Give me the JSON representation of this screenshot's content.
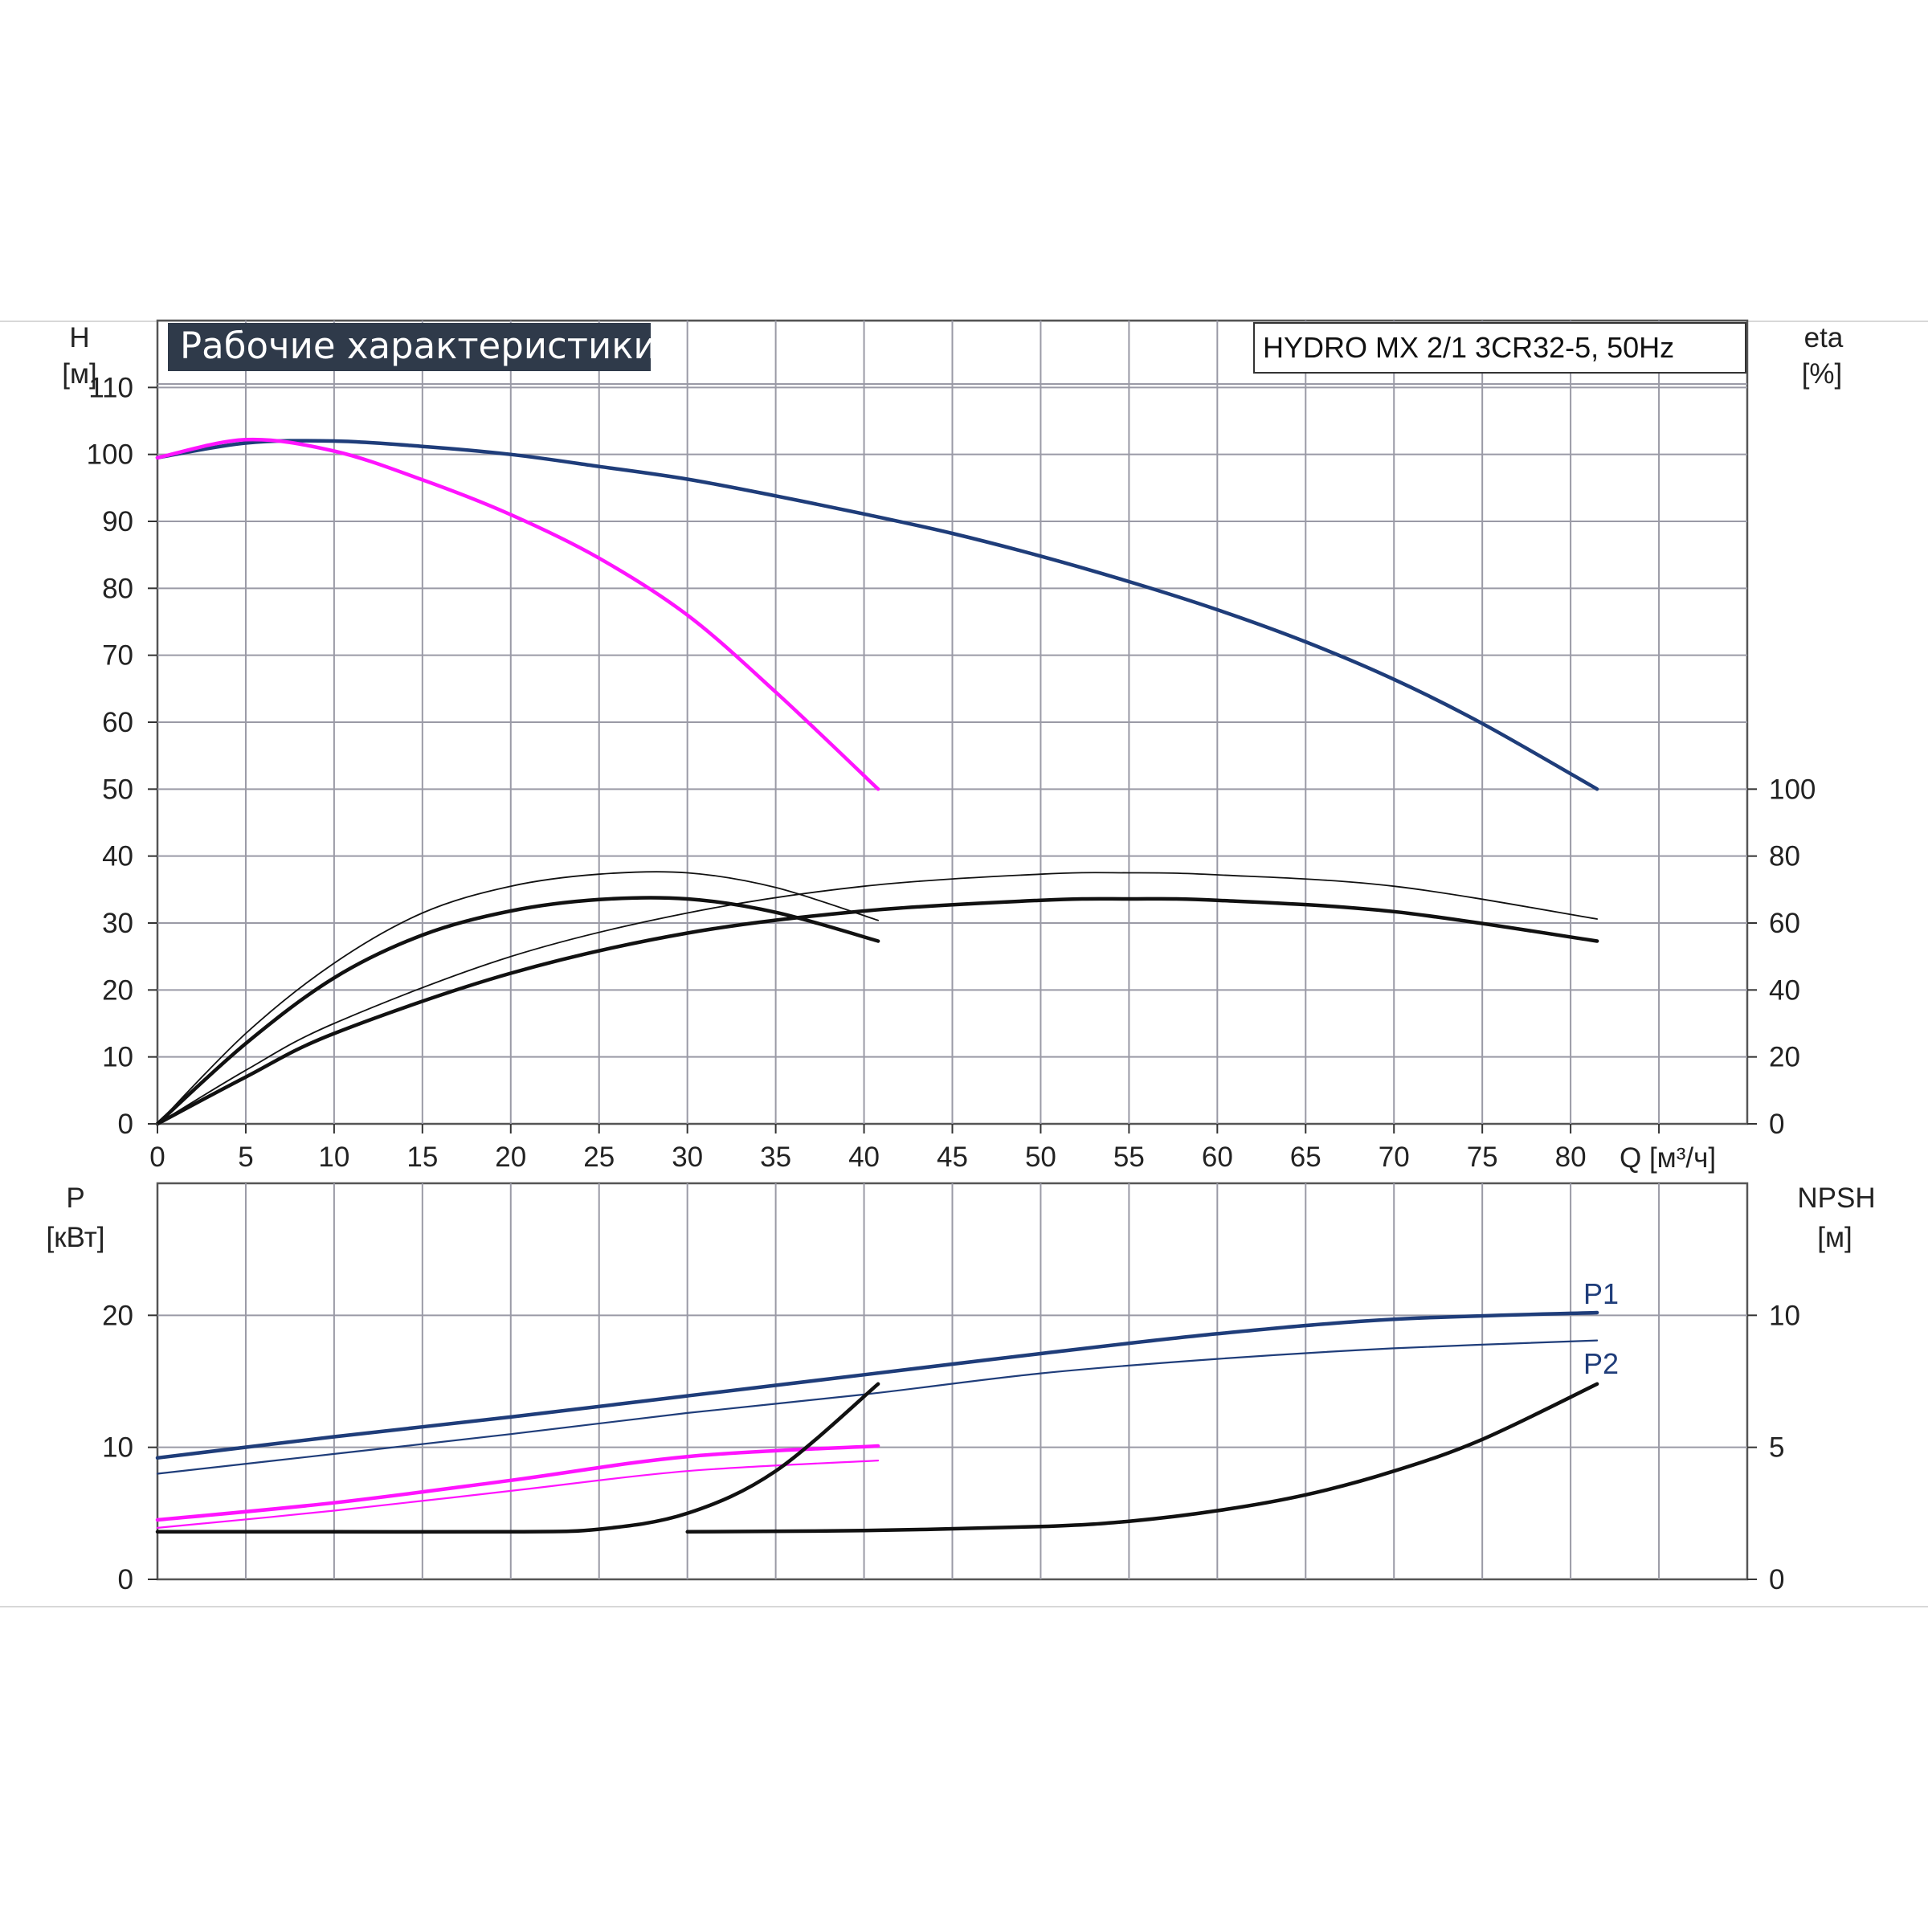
{
  "title": "Рабочие характеристики",
  "model": "HYDRO MX 2/1 3CR32-5, 50Hz",
  "colors": {
    "navy": "#1f3d7a",
    "magenta": "#ff14ff",
    "black": "#111111",
    "grid": "#9a9aa6",
    "title_bg": "#2f3a4a"
  },
  "axes": {
    "h_label": "H",
    "h_unit": "[м]",
    "eta_label": "eta",
    "eta_unit": "[%]",
    "q_label": "Q [м³/ч]",
    "p_label": "P",
    "p_unit": "[кВт]",
    "npsh_label": "NPSH",
    "npsh_unit": "[м]"
  },
  "chart_data": [
    {
      "id": "head-efficiency",
      "type": "line",
      "title": "Рабочие характеристики",
      "xlabel": "Q [м³/ч]",
      "ylabel": "H [м]",
      "y2label": "eta [%]",
      "xlim": [
        0,
        90
      ],
      "ylim": [
        0,
        120
      ],
      "y2lim": [
        0,
        240
      ],
      "xticks": [
        0,
        5,
        10,
        15,
        20,
        25,
        30,
        35,
        40,
        45,
        50,
        55,
        60,
        65,
        70,
        75,
        80
      ],
      "yticks": [
        0,
        10,
        20,
        30,
        40,
        50,
        60,
        70,
        80,
        90,
        100,
        110
      ],
      "y2ticks": [
        0,
        20,
        40,
        60,
        80,
        100
      ],
      "grid": true,
      "series": [
        {
          "color": "#1f3d7a",
          "axis": "left",
          "width": 4.5,
          "x": [
            0,
            5,
            10,
            15,
            20,
            25,
            30,
            35,
            40,
            45,
            50,
            55,
            60,
            65,
            70,
            75,
            81.5
          ],
          "y": [
            99.5,
            101.7,
            102,
            101.2,
            100,
            98.2,
            96.3,
            93.8,
            91.1,
            88.2,
            84.8,
            81,
            76.8,
            72,
            66.4,
            59.8,
            50
          ]
        },
        {
          "color": "#ff14ff",
          "axis": "left",
          "width": 4.5,
          "x": [
            0,
            5,
            10,
            15,
            20,
            25,
            30,
            35,
            40.8
          ],
          "y": [
            99.5,
            102.2,
            100.5,
            96.2,
            91,
            84.5,
            76,
            64.5,
            50
          ]
        },
        {
          "color": "#111111",
          "axis": "left",
          "width": 1.8,
          "x": [
            0,
            5,
            10,
            15,
            20,
            25,
            30,
            35,
            40.8
          ],
          "y": [
            0,
            13.5,
            24,
            31.5,
            35.5,
            37.3,
            37.5,
            35.3,
            30.4
          ]
        },
        {
          "color": "#111111",
          "axis": "left",
          "width": 4.5,
          "x": [
            0,
            5,
            10,
            15,
            20,
            25,
            30,
            35,
            40.8
          ],
          "y": [
            0,
            12,
            21.8,
            28.2,
            31.8,
            33.5,
            33.6,
            31.6,
            27.3
          ]
        },
        {
          "color": "#111111",
          "axis": "left",
          "width": 1.8,
          "x": [
            0,
            5,
            10,
            20,
            30,
            40,
            50,
            55,
            60,
            70,
            81.5
          ],
          "y": [
            0,
            8,
            15,
            25,
            31.5,
            35.5,
            37.3,
            37.5,
            37.2,
            35.5,
            30.6
          ]
        },
        {
          "color": "#111111",
          "axis": "left",
          "width": 4.5,
          "x": [
            0,
            5,
            10,
            20,
            30,
            40,
            50,
            55,
            60,
            70,
            81.5
          ],
          "y": [
            0,
            7,
            13.5,
            22.5,
            28.5,
            31.8,
            33.4,
            33.6,
            33.4,
            31.7,
            27.3
          ]
        }
      ]
    },
    {
      "id": "power-npsh",
      "type": "line",
      "ylabel": "P [кВт]",
      "y2label": "NPSH [м]",
      "xlim": [
        0,
        90
      ],
      "ylim": [
        0,
        30
      ],
      "y2lim": [
        0,
        15
      ],
      "yticks": [
        0,
        10,
        20
      ],
      "y2ticks": [
        0,
        5,
        10
      ],
      "grid": true,
      "series": [
        {
          "name": "P1",
          "color": "#1f3d7a",
          "axis": "left",
          "width": 4.5,
          "x": [
            0,
            10,
            20,
            30,
            40,
            50,
            60,
            70,
            81.5
          ],
          "y": [
            9.2,
            10.8,
            12.3,
            13.9,
            15.5,
            17.1,
            18.6,
            19.7,
            20.2
          ]
        },
        {
          "name": "P2",
          "color": "#1f3d7a",
          "axis": "left",
          "width": 2.2,
          "x": [
            0,
            10,
            20,
            30,
            40,
            50,
            60,
            70,
            81.5
          ],
          "y": [
            8,
            9.5,
            11,
            12.6,
            14,
            15.6,
            16.7,
            17.5,
            18.1
          ]
        },
        {
          "color": "#ff14ff",
          "axis": "left",
          "width": 4.5,
          "x": [
            0,
            10,
            20,
            30,
            40.8
          ],
          "y": [
            4.5,
            5.8,
            7.5,
            9.3,
            10.1
          ]
        },
        {
          "color": "#ff14ff",
          "axis": "left",
          "width": 2.2,
          "x": [
            0,
            10,
            20,
            30,
            40.8
          ],
          "y": [
            3.9,
            5.2,
            6.7,
            8.2,
            9
          ]
        },
        {
          "color": "#111111",
          "axis": "right",
          "width": 4.5,
          "x": [
            0,
            10,
            20,
            25,
            30,
            35,
            40.8
          ],
          "y": [
            1.8,
            1.8,
            1.8,
            1.9,
            2.5,
            4.1,
            7.4
          ]
        },
        {
          "color": "#111111",
          "axis": "right",
          "width": 4.5,
          "x": [
            30,
            40,
            50,
            55,
            60,
            65,
            70,
            75,
            81.5
          ],
          "y": [
            1.8,
            1.85,
            2.0,
            2.2,
            2.6,
            3.2,
            4.1,
            5.3,
            7.4
          ]
        }
      ]
    }
  ],
  "legend": {
    "p1": "P1",
    "p2": "P2"
  }
}
